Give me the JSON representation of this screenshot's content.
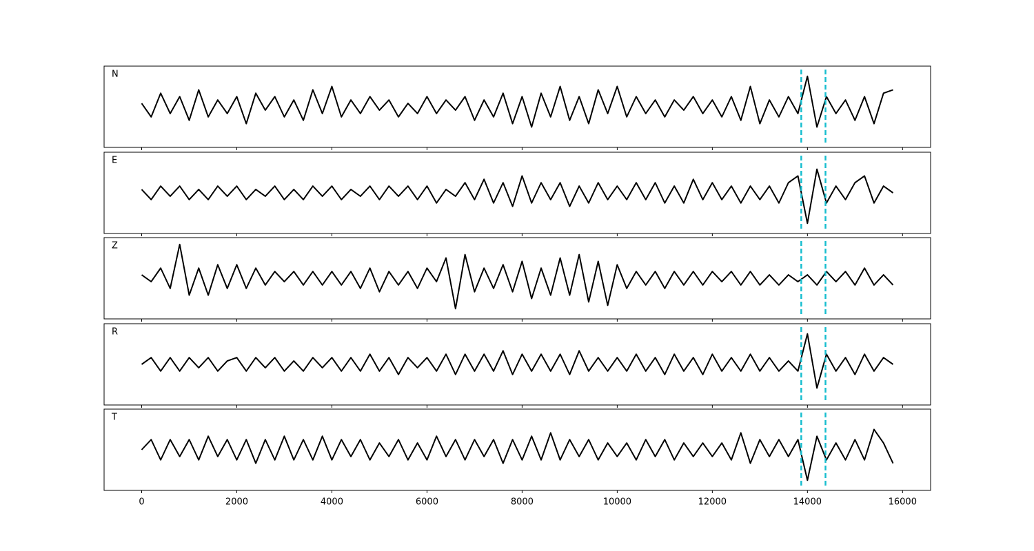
{
  "chart_data": {
    "type": "line",
    "x": [
      0,
      200,
      400,
      600,
      800,
      1000,
      1200,
      1400,
      1600,
      1800,
      2000,
      2200,
      2400,
      2600,
      2800,
      3000,
      3200,
      3400,
      3600,
      3800,
      4000,
      4200,
      4400,
      4600,
      4800,
      5000,
      5200,
      5400,
      5600,
      5800,
      6000,
      6200,
      6400,
      6600,
      6800,
      7000,
      7200,
      7400,
      7600,
      7800,
      8000,
      8200,
      8400,
      8600,
      8800,
      9000,
      9200,
      9400,
      9600,
      9800,
      10000,
      10200,
      10400,
      10600,
      10800,
      11000,
      11200,
      11400,
      11600,
      11800,
      12000,
      12200,
      12400,
      12600,
      12800,
      13000,
      13200,
      13400,
      13600,
      13800,
      14000,
      14200,
      14400,
      14600,
      14800,
      15000,
      15200,
      15400,
      15600,
      15800
    ],
    "series": [
      {
        "name": "N",
        "color": "#000000",
        "values": [
          0.1,
          -0.3,
          0.4,
          -0.2,
          0.3,
          -0.4,
          0.5,
          -0.3,
          0.2,
          -0.2,
          0.3,
          -0.5,
          0.4,
          -0.1,
          0.3,
          -0.3,
          0.2,
          -0.4,
          0.5,
          -0.2,
          0.6,
          -0.3,
          0.2,
          -0.2,
          0.3,
          -0.1,
          0.2,
          -0.3,
          0.1,
          -0.2,
          0.3,
          -0.2,
          0.2,
          -0.1,
          0.3,
          -0.4,
          0.2,
          -0.3,
          0.4,
          -0.5,
          0.3,
          -0.6,
          0.4,
          -0.3,
          0.6,
          -0.4,
          0.3,
          -0.5,
          0.5,
          -0.2,
          0.6,
          -0.3,
          0.3,
          -0.2,
          0.2,
          -0.3,
          0.2,
          -0.1,
          0.3,
          -0.2,
          0.2,
          -0.3,
          0.3,
          -0.4,
          0.6,
          -0.5,
          0.2,
          -0.3,
          0.3,
          -0.2,
          0.9,
          -0.6,
          0.3,
          -0.2,
          0.2,
          -0.4,
          0.3,
          -0.5,
          0.4,
          0.5
        ]
      },
      {
        "name": "E",
        "color": "#000000",
        "values": [
          0.1,
          -0.2,
          0.2,
          -0.1,
          0.2,
          -0.2,
          0.1,
          -0.2,
          0.2,
          -0.1,
          0.2,
          -0.2,
          0.1,
          -0.1,
          0.2,
          -0.2,
          0.1,
          -0.2,
          0.2,
          -0.1,
          0.2,
          -0.2,
          0.1,
          -0.1,
          0.2,
          -0.2,
          0.2,
          -0.1,
          0.2,
          -0.2,
          0.2,
          -0.3,
          0.1,
          -0.1,
          0.3,
          -0.2,
          0.4,
          -0.3,
          0.3,
          -0.4,
          0.5,
          -0.3,
          0.3,
          -0.2,
          0.3,
          -0.4,
          0.2,
          -0.3,
          0.3,
          -0.2,
          0.2,
          -0.2,
          0.3,
          -0.2,
          0.3,
          -0.3,
          0.2,
          -0.3,
          0.4,
          -0.2,
          0.3,
          -0.2,
          0.2,
          -0.3,
          0.2,
          -0.2,
          0.2,
          -0.3,
          0.3,
          0.5,
          -0.9,
          0.7,
          -0.3,
          0.2,
          -0.2,
          0.3,
          0.5,
          -0.3,
          0.2,
          0.0
        ]
      },
      {
        "name": "Z",
        "color": "#000000",
        "values": [
          0.1,
          -0.1,
          0.3,
          -0.3,
          1.0,
          -0.5,
          0.3,
          -0.5,
          0.4,
          -0.3,
          0.4,
          -0.3,
          0.3,
          -0.2,
          0.2,
          -0.1,
          0.2,
          -0.2,
          0.2,
          -0.2,
          0.2,
          -0.2,
          0.2,
          -0.3,
          0.3,
          -0.4,
          0.2,
          -0.2,
          0.2,
          -0.3,
          0.3,
          -0.1,
          0.6,
          -0.9,
          0.7,
          -0.4,
          0.3,
          -0.3,
          0.4,
          -0.4,
          0.5,
          -0.6,
          0.3,
          -0.5,
          0.6,
          -0.5,
          0.7,
          -0.7,
          0.5,
          -0.8,
          0.4,
          -0.3,
          0.2,
          -0.2,
          0.2,
          -0.3,
          0.2,
          -0.2,
          0.2,
          -0.2,
          0.2,
          -0.1,
          0.2,
          -0.2,
          0.2,
          -0.2,
          0.1,
          -0.2,
          0.1,
          -0.1,
          0.1,
          -0.2,
          0.2,
          -0.1,
          0.2,
          -0.2,
          0.3,
          -0.2,
          0.1,
          -0.2
        ]
      },
      {
        "name": "R",
        "color": "#000000",
        "values": [
          0.0,
          0.2,
          -0.2,
          0.2,
          -0.2,
          0.2,
          -0.1,
          0.2,
          -0.2,
          0.1,
          0.2,
          -0.2,
          0.2,
          -0.1,
          0.2,
          -0.2,
          0.1,
          -0.2,
          0.2,
          -0.1,
          0.2,
          -0.2,
          0.2,
          -0.2,
          0.3,
          -0.2,
          0.2,
          -0.3,
          0.2,
          -0.1,
          0.2,
          -0.2,
          0.3,
          -0.3,
          0.3,
          -0.2,
          0.3,
          -0.2,
          0.4,
          -0.3,
          0.3,
          -0.2,
          0.3,
          -0.2,
          0.3,
          -0.3,
          0.4,
          -0.2,
          0.2,
          -0.2,
          0.2,
          -0.2,
          0.3,
          -0.2,
          0.2,
          -0.3,
          0.3,
          -0.2,
          0.2,
          -0.3,
          0.3,
          -0.2,
          0.2,
          -0.2,
          0.3,
          -0.2,
          0.2,
          -0.2,
          0.1,
          -0.2,
          0.9,
          -0.7,
          0.3,
          -0.2,
          0.2,
          -0.3,
          0.3,
          -0.2,
          0.2,
          0.0
        ]
      },
      {
        "name": "T",
        "color": "#000000",
        "values": [
          0.0,
          0.3,
          -0.3,
          0.3,
          -0.2,
          0.3,
          -0.3,
          0.4,
          -0.2,
          0.3,
          -0.3,
          0.3,
          -0.4,
          0.3,
          -0.3,
          0.4,
          -0.3,
          0.3,
          -0.3,
          0.4,
          -0.3,
          0.3,
          -0.2,
          0.3,
          -0.3,
          0.2,
          -0.2,
          0.3,
          -0.3,
          0.2,
          -0.3,
          0.4,
          -0.2,
          0.3,
          -0.3,
          0.3,
          -0.2,
          0.3,
          -0.4,
          0.3,
          -0.3,
          0.4,
          -0.3,
          0.5,
          -0.3,
          0.3,
          -0.2,
          0.3,
          -0.3,
          0.2,
          -0.2,
          0.2,
          -0.3,
          0.3,
          -0.2,
          0.3,
          -0.3,
          0.2,
          -0.2,
          0.2,
          -0.2,
          0.2,
          -0.3,
          0.5,
          -0.4,
          0.3,
          -0.2,
          0.3,
          -0.2,
          0.3,
          -0.9,
          0.4,
          -0.3,
          0.2,
          -0.3,
          0.3,
          -0.3,
          0.6,
          0.2,
          -0.4
        ]
      }
    ],
    "xlim": [
      -790,
      16590
    ],
    "xticks": [
      0,
      2000,
      4000,
      6000,
      8000,
      10000,
      12000,
      14000,
      16000
    ],
    "ylim": [
      -1.2,
      1.2
    ],
    "vlines": {
      "x": [
        13870,
        14380
      ],
      "color": "#17becf"
    }
  }
}
